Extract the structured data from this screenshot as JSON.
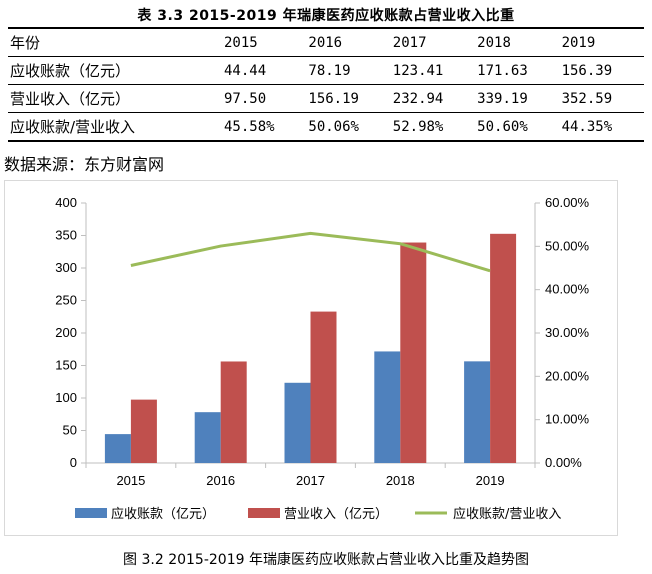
{
  "table": {
    "title": "表 3.3 2015-2019 年瑞康医药应收账款占营业收入比重",
    "rows": [
      [
        "年份",
        "2015",
        "2016",
        "2017",
        "2018",
        "2019"
      ],
      [
        "应收账款（亿元）",
        "44.44",
        "78.19",
        "123.41",
        "171.63",
        "156.39"
      ],
      [
        "营业收入（亿元）",
        "97.50",
        "156.19",
        "232.94",
        "339.19",
        "352.59"
      ],
      [
        "应收账款/营业收入",
        "45.58%",
        "50.06%",
        "52.98%",
        "50.60%",
        "44.35%"
      ]
    ]
  },
  "source": "数据来源：东方财富网",
  "caption": "图 3.2 2015-2019 年瑞康医药应收账款占营业收入比重及趋势图",
  "chart_data": {
    "type": "bar",
    "categories": [
      "2015",
      "2016",
      "2017",
      "2018",
      "2019"
    ],
    "series": [
      {
        "name": "应收账款（亿元）",
        "type": "bar",
        "axis": "left",
        "color": "#4f81bd",
        "values": [
          44.44,
          78.19,
          123.41,
          171.63,
          156.39
        ]
      },
      {
        "name": "营业收入（亿元）",
        "type": "bar",
        "axis": "left",
        "color": "#c0504d",
        "values": [
          97.5,
          156.19,
          232.94,
          339.19,
          352.59
        ]
      },
      {
        "name": "应收账款/营业收入",
        "type": "line",
        "axis": "right",
        "color": "#9bbb59",
        "values": [
          45.58,
          50.06,
          52.98,
          50.6,
          44.35
        ]
      }
    ],
    "ylim": [
      0,
      400
    ],
    "yticks": [
      "0",
      "50",
      "100",
      "150",
      "200",
      "250",
      "300",
      "350",
      "400"
    ],
    "y2lim": [
      0,
      60
    ],
    "y2ticks": [
      "0.00%",
      "10.00%",
      "20.00%",
      "30.00%",
      "40.00%",
      "50.00%",
      "60.00%"
    ],
    "grid": false,
    "legend": "bottom"
  }
}
